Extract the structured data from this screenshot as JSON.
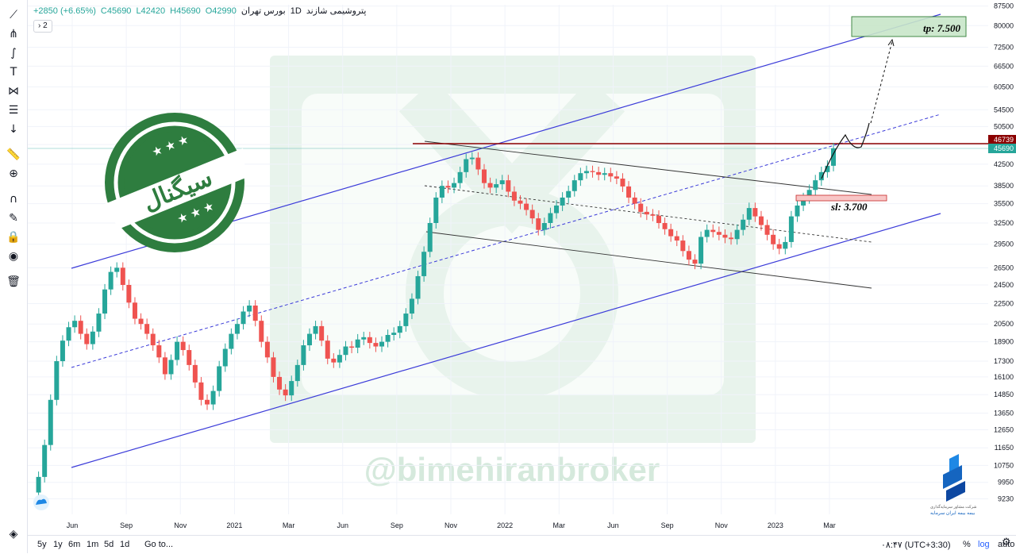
{
  "header": {
    "symbol": "پتروشیمی شازند",
    "interval": "1D",
    "exchange": "بورس تهران",
    "open": "O42990",
    "high": "H45690",
    "low": "L42420",
    "close": "C45690",
    "change": "+2850 (+6.65%)",
    "collapse_label": "2"
  },
  "overlay": {
    "stamp_text": "سیگنال",
    "watermark": "@bimehiranbroker",
    "tp_label": "tp: 7.500",
    "sl_label": "sl: 3.700",
    "broker_line1": "شرکت مشاور سرمایه‌گذاری",
    "broker_line2": "بیمه بیمه ایران سرمایه"
  },
  "colors": {
    "up": "#26a69a",
    "down": "#ef5350",
    "channel": "#3b3bd9",
    "resistance": "#8b0000",
    "price_tag": "#26a69a",
    "stamp": "#2e7d3f",
    "tp_box": "#c8e6c9",
    "sl_box": "#f8c6c6"
  },
  "bottom": {
    "ranges": [
      "5y",
      "1y",
      "6m",
      "1m",
      "5d",
      "1d"
    ],
    "goto": "Go to...",
    "clock": "۰۸:۴۷ (UTC+3:30)",
    "percent": "%",
    "log": "log",
    "auto": "auto"
  },
  "chart_data": {
    "type": "candlestick",
    "y_scale": "log",
    "ylim": [
      8600,
      88000
    ],
    "y_ticks": [
      87500,
      80000,
      72500,
      66500,
      60500,
      54500,
      50500,
      46500,
      42500,
      38500,
      35500,
      32500,
      29500,
      26500,
      24500,
      22500,
      20500,
      18900,
      17300,
      16100,
      14850,
      13650,
      12650,
      11650,
      10750,
      9950,
      9230
    ],
    "x_ticks": [
      "Jun",
      "Sep",
      "Nov",
      "2021",
      "Mar",
      "Jun",
      "Sep",
      "Nov",
      "2022",
      "Mar",
      "Jun",
      "Sep",
      "Nov",
      "2023",
      "Mar"
    ],
    "last_price": 45690,
    "resistance_price": 46739,
    "close_series": [
      9500,
      10200,
      11800,
      14500,
      17300,
      19000,
      20200,
      20800,
      19600,
      18700,
      19800,
      21500,
      24000,
      26000,
      26500,
      24500,
      22600,
      21000,
      20500,
      19600,
      18600,
      17600,
      16300,
      17400,
      18900,
      18200,
      17000,
      15700,
      14500,
      14200,
      15100,
      16900,
      18300,
      19600,
      20500,
      21700,
      22300,
      20800,
      18900,
      17600,
      16100,
      15200,
      14800,
      15800,
      17000,
      18600,
      19600,
      20300,
      19000,
      17500,
      17200,
      17800,
      18500,
      18400,
      19100,
      19300,
      18800,
      18500,
      18900,
      19500,
      19700,
      20300,
      21500,
      23000,
      25500,
      28500,
      32500,
      36500,
      38500,
      38200,
      39000,
      41000,
      43500,
      43800,
      41500,
      39000,
      38200,
      38800,
      39500,
      37500,
      36000,
      35500,
      34500,
      33200,
      31500,
      32500,
      34000,
      35200,
      36500,
      37600,
      39500,
      40800,
      41200,
      41000,
      40500,
      40800,
      40200,
      39800,
      38400,
      36500,
      35500,
      34200,
      33800,
      33600,
      32500,
      31600,
      30600,
      30000,
      28600,
      27500,
      27000,
      30500,
      31500,
      31200,
      30800,
      30400,
      30200,
      31500,
      33000,
      34800,
      33500,
      32200,
      30800,
      29500,
      28900,
      29800,
      33500,
      35200,
      36400,
      37800,
      39500,
      41000,
      42200,
      45690
    ],
    "tp_value": "7.500",
    "sl_value": "3.700"
  }
}
